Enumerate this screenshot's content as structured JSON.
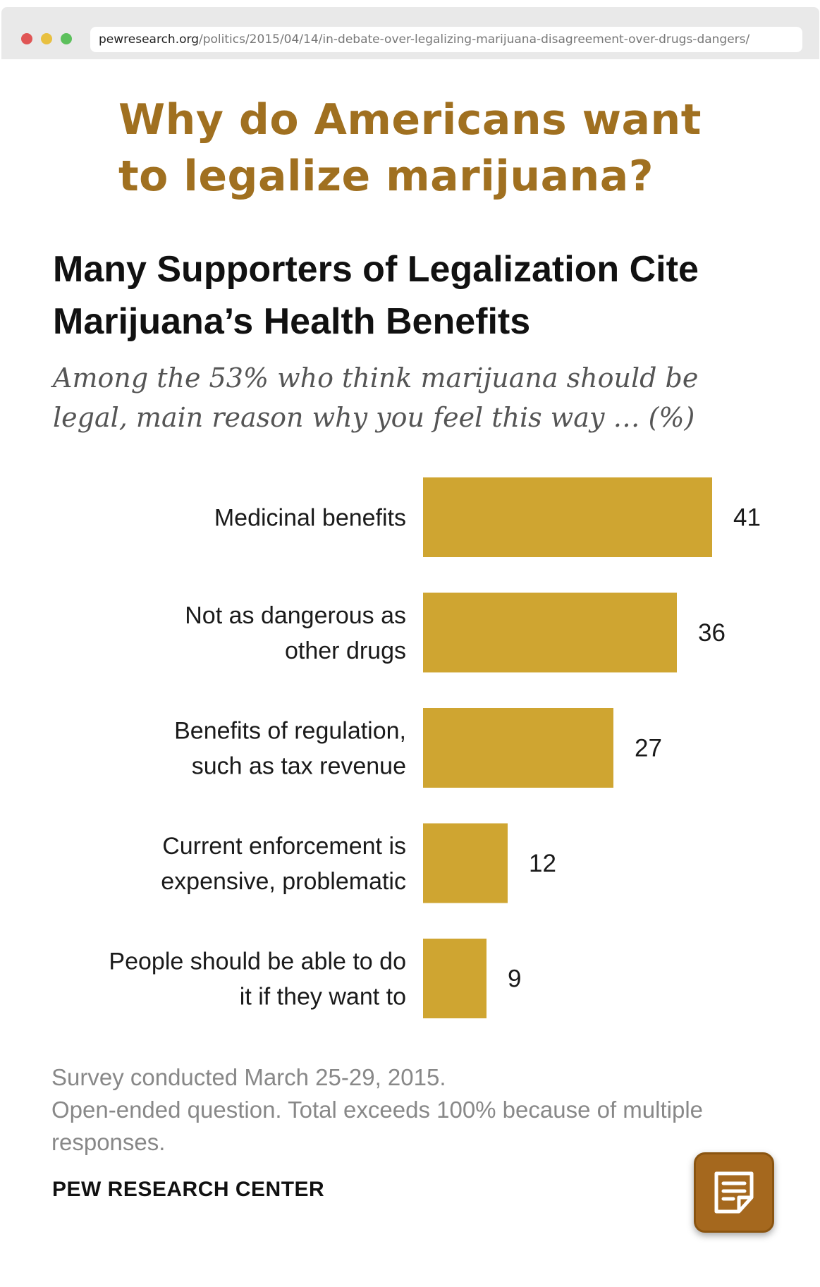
{
  "browser": {
    "url_domain": "pewresearch.org",
    "url_path": "/politics/2015/04/14/in-debate-over-legalizing-marijuana-disagreement-over-drugs-dangers/",
    "dot_colors": [
      "#e05555",
      "#e8c040",
      "#5cc05c"
    ]
  },
  "headline": "Why do Americans want to legalize marijuana?",
  "chart_title": "Many Supporters of Legalization Cite Marijuana’s Health Benefits",
  "chart_subtitle": "Among the 53% who think marijuana should be legal, main reason why you feel this way … (%)",
  "chart_data": {
    "type": "bar",
    "orientation": "horizontal",
    "categories": [
      [
        "Medicinal benefits"
      ],
      [
        "Not as dangerous as",
        "other drugs"
      ],
      [
        "Benefits of regulation,",
        "such as tax revenue"
      ],
      [
        "Current enforcement is",
        "expensive, problematic"
      ],
      [
        "People should be able to do",
        "it if they want to"
      ]
    ],
    "values": [
      41,
      36,
      27,
      12,
      9
    ],
    "bar_color": "#cfa531",
    "grid": false,
    "legend": "none"
  },
  "notes": [
    "Survey conducted March 25-29, 2015.",
    "Open-ended question. Total exceeds 100% because of multiple responses."
  ],
  "source": "PEW RESEARCH CENTER",
  "colors": {
    "headline": "#a07020",
    "bar": "#cfa531",
    "button": "#a5681e"
  },
  "notes_button": {
    "icon": "note-icon"
  }
}
